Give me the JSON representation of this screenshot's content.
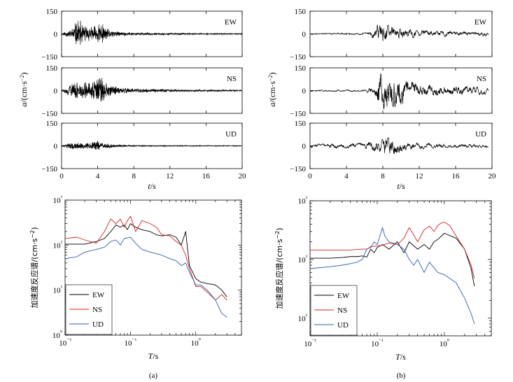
{
  "figure": {
    "caption_a": "(a)",
    "caption_b": "(b)"
  },
  "chart_data": [
    {
      "type": "line",
      "panel": "a",
      "subplots": [
        "EW",
        "NS",
        "UD"
      ],
      "xlabel": "t/s",
      "ylabel": "a/(cm·s⁻²)",
      "xlim": [
        0,
        20
      ],
      "ylim": [
        -150,
        150
      ],
      "xticks": [
        0,
        4,
        8,
        12,
        16,
        20
      ],
      "yticks": [
        -150,
        0,
        150
      ],
      "series": [
        {
          "name": "EW",
          "peak": 110,
          "envelope": [
            [
              0,
              5
            ],
            [
              0.3,
              18
            ],
            [
              1,
              30
            ],
            [
              1.8,
              110
            ],
            [
              2.5,
              65
            ],
            [
              3.4,
              50
            ],
            [
              4.2,
              88
            ],
            [
              5,
              40
            ],
            [
              6,
              20
            ],
            [
              8,
              10
            ],
            [
              12,
              7
            ],
            [
              16,
              5
            ],
            [
              20,
              4
            ]
          ]
        },
        {
          "name": "NS",
          "peak": 145,
          "envelope": [
            [
              0,
              5
            ],
            [
              0.3,
              18
            ],
            [
              1,
              50
            ],
            [
              2,
              70
            ],
            [
              3,
              60
            ],
            [
              3.8,
              100
            ],
            [
              4.2,
              145
            ],
            [
              4.8,
              55
            ],
            [
              6,
              30
            ],
            [
              8,
              16
            ],
            [
              12,
              10
            ],
            [
              16,
              7
            ],
            [
              20,
              5
            ]
          ]
        },
        {
          "name": "UD",
          "peak": 40,
          "envelope": [
            [
              0,
              4
            ],
            [
              0.5,
              12
            ],
            [
              1.2,
              30
            ],
            [
              2,
              22
            ],
            [
              3,
              25
            ],
            [
              3.8,
              38
            ],
            [
              4.5,
              25
            ],
            [
              6,
              10
            ],
            [
              8,
              5
            ],
            [
              12,
              4
            ],
            [
              16,
              3
            ],
            [
              20,
              3
            ]
          ]
        }
      ]
    },
    {
      "type": "line",
      "panel": "b",
      "subplots": [
        "EW",
        "NS",
        "UD"
      ],
      "xlabel": "t/s",
      "ylabel": "",
      "xlim": [
        0,
        20
      ],
      "ylim": [
        -150,
        150
      ],
      "xticks": [
        0,
        4,
        8,
        12,
        16,
        20
      ],
      "yticks": [
        -150,
        0,
        150
      ],
      "series": [
        {
          "name": "EW",
          "peak": 80,
          "envelope": [
            [
              0,
              5
            ],
            [
              5,
              6
            ],
            [
              6.5,
              10
            ],
            [
              7.2,
              55
            ],
            [
              7.8,
              80
            ],
            [
              8.5,
              65
            ],
            [
              9.5,
              40
            ],
            [
              11,
              30
            ],
            [
              13,
              20
            ],
            [
              16,
              15
            ],
            [
              19.5,
              14
            ]
          ]
        },
        {
          "name": "NS",
          "peak": 145,
          "envelope": [
            [
              0,
              5
            ],
            [
              6,
              6
            ],
            [
              7,
              30
            ],
            [
              7.8,
              145
            ],
            [
              8.5,
              110
            ],
            [
              9.5,
              140
            ],
            [
              10.5,
              70
            ],
            [
              12,
              45
            ],
            [
              14,
              35
            ],
            [
              16,
              30
            ],
            [
              19.5,
              25
            ]
          ]
        },
        {
          "name": "UD",
          "peak": 70,
          "envelope": [
            [
              0,
              12
            ],
            [
              4,
              15
            ],
            [
              6,
              20
            ],
            [
              7.5,
              40
            ],
            [
              8.5,
              70
            ],
            [
              9.5,
              50
            ],
            [
              11,
              25
            ],
            [
              14,
              15
            ],
            [
              17,
              12
            ],
            [
              19.5,
              10
            ]
          ]
        }
      ]
    },
    {
      "type": "line",
      "panel": "a",
      "xscale": "log",
      "yscale": "log",
      "xlabel": "T/s",
      "ylabel": "加速度反应谱/(cm·s⁻²)",
      "xlim": [
        0.01,
        5
      ],
      "ylim": [
        1,
        1000
      ],
      "xticks": [
        0.01,
        0.1,
        1
      ],
      "xtick_labels": [
        "10⁻²",
        "10⁻¹",
        "10⁰"
      ],
      "yticks": [
        1,
        10,
        100,
        1000
      ],
      "ytick_labels": [
        "10⁰",
        "10¹",
        "10²",
        "10³"
      ],
      "legend": "bottom-left",
      "series": [
        {
          "name": "EW",
          "color": "#000000",
          "x": [
            0.01,
            0.02,
            0.03,
            0.04,
            0.05,
            0.06,
            0.07,
            0.08,
            0.09,
            0.1,
            0.12,
            0.15,
            0.2,
            0.25,
            0.3,
            0.4,
            0.5,
            0.6,
            0.7,
            0.8,
            1.0,
            1.2,
            1.5,
            2.0,
            2.5,
            3.0
          ],
          "y": [
            105,
            105,
            120,
            140,
            200,
            280,
            250,
            280,
            220,
            300,
            250,
            220,
            200,
            170,
            160,
            170,
            150,
            100,
            200,
            35,
            18,
            15,
            14,
            13,
            10,
            7
          ]
        },
        {
          "name": "NS",
          "color": "#d42020",
          "x": [
            0.01,
            0.015,
            0.02,
            0.03,
            0.04,
            0.05,
            0.06,
            0.07,
            0.08,
            0.09,
            0.1,
            0.12,
            0.15,
            0.2,
            0.25,
            0.3,
            0.4,
            0.5,
            0.6,
            0.7,
            0.8,
            1.0,
            1.2,
            1.5,
            2.0,
            2.5,
            3.0
          ],
          "y": [
            140,
            150,
            130,
            110,
            200,
            380,
            300,
            380,
            250,
            350,
            440,
            200,
            350,
            300,
            250,
            170,
            160,
            120,
            100,
            60,
            30,
            12,
            12,
            9,
            6,
            8,
            6
          ]
        },
        {
          "name": "UD",
          "color": "#2f5db0",
          "x": [
            0.01,
            0.015,
            0.02,
            0.03,
            0.04,
            0.05,
            0.06,
            0.07,
            0.08,
            0.1,
            0.12,
            0.15,
            0.2,
            0.3,
            0.4,
            0.5,
            0.6,
            0.7,
            0.8,
            1.0,
            1.2,
            1.5,
            2.0,
            2.5,
            3.0
          ],
          "y": [
            50,
            55,
            70,
            80,
            90,
            120,
            130,
            100,
            140,
            150,
            110,
            80,
            70,
            60,
            50,
            45,
            35,
            40,
            25,
            13,
            13,
            10,
            6,
            3,
            2.5
          ]
        }
      ]
    },
    {
      "type": "line",
      "panel": "b",
      "xscale": "log",
      "yscale": "log",
      "xlabel": "T/s",
      "ylabel": "加速度反应谱/(cm·s⁻²)",
      "xlim": [
        0.01,
        5
      ],
      "ylim": [
        5,
        1000
      ],
      "xticks": [
        0.01,
        0.1,
        1
      ],
      "xtick_labels": [
        "10⁻²",
        "10⁻¹",
        "10⁰"
      ],
      "yticks": [
        10,
        100,
        1000
      ],
      "ytick_labels": [
        "10¹",
        "10²",
        "10³"
      ],
      "legend": "bottom-left",
      "series": [
        {
          "name": "EW",
          "color": "#000000",
          "x": [
            0.01,
            0.02,
            0.03,
            0.04,
            0.05,
            0.06,
            0.07,
            0.08,
            0.09,
            0.1,
            0.12,
            0.15,
            0.2,
            0.25,
            0.3,
            0.4,
            0.5,
            0.6,
            0.7,
            0.8,
            1.0,
            1.5,
            2.0,
            2.5,
            2.8
          ],
          "y": [
            105,
            105,
            108,
            112,
            112,
            115,
            110,
            150,
            130,
            160,
            180,
            150,
            200,
            130,
            200,
            150,
            180,
            150,
            200,
            220,
            280,
            230,
            150,
            70,
            35
          ]
        },
        {
          "name": "NS",
          "color": "#d42020",
          "x": [
            0.01,
            0.02,
            0.03,
            0.04,
            0.05,
            0.06,
            0.07,
            0.08,
            0.1,
            0.12,
            0.15,
            0.2,
            0.25,
            0.3,
            0.4,
            0.5,
            0.6,
            0.7,
            0.8,
            0.9,
            1.0,
            1.2,
            1.5,
            2.0,
            2.5,
            2.8
          ],
          "y": [
            145,
            145,
            145,
            145,
            148,
            150,
            150,
            165,
            170,
            175,
            190,
            180,
            230,
            350,
            200,
            320,
            370,
            300,
            380,
            420,
            430,
            380,
            250,
            150,
            80,
            48
          ]
        },
        {
          "name": "UD",
          "color": "#2f5db0",
          "x": [
            0.01,
            0.02,
            0.03,
            0.04,
            0.05,
            0.06,
            0.07,
            0.08,
            0.09,
            0.1,
            0.12,
            0.13,
            0.15,
            0.2,
            0.25,
            0.3,
            0.35,
            0.4,
            0.5,
            0.6,
            0.8,
            1.0,
            1.5,
            2.0,
            2.5,
            2.8
          ],
          "y": [
            70,
            75,
            80,
            85,
            90,
            100,
            150,
            160,
            200,
            180,
            350,
            250,
            200,
            180,
            150,
            100,
            80,
            100,
            60,
            90,
            60,
            55,
            40,
            22,
            12,
            8
          ]
        }
      ]
    }
  ]
}
